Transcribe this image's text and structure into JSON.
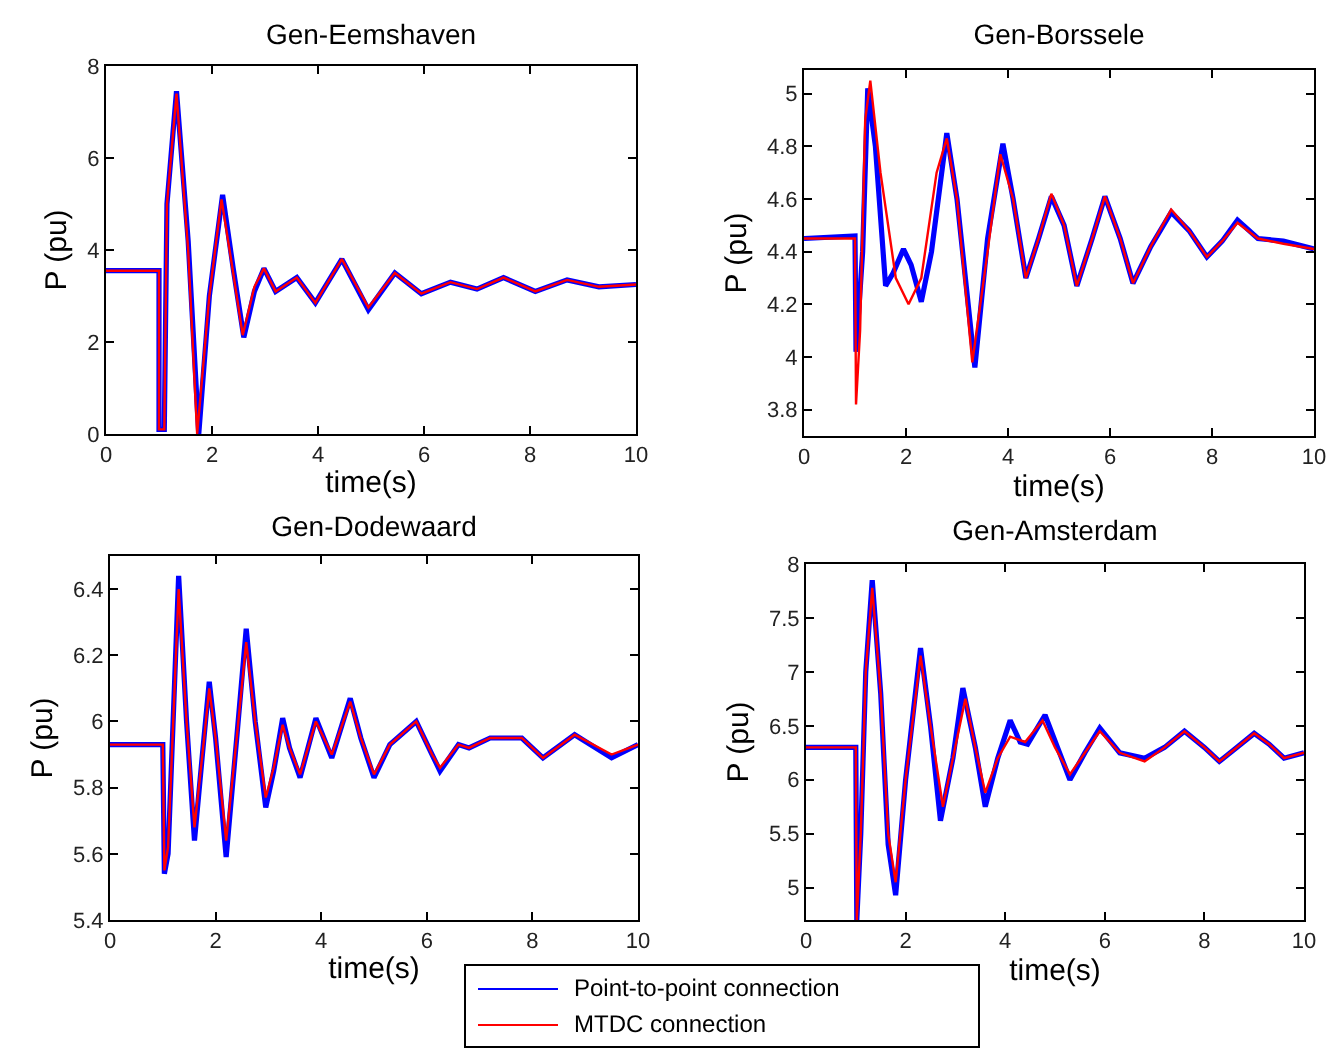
{
  "chart_data": [
    {
      "type": "line",
      "title": "Gen-Eemshaven",
      "xlabel": "time(s)",
      "ylabel": "P (pu)",
      "xlim": [
        0,
        10
      ],
      "xticks": [
        0,
        2,
        4,
        6,
        8,
        10
      ],
      "ylim": [
        0,
        8
      ],
      "yticks": [
        0,
        2,
        4,
        6,
        8
      ],
      "grid": false,
      "legend": false,
      "marker": "none",
      "line_style": "solid",
      "series": [
        {
          "color": "#0000ff",
          "x": [
            0,
            1,
            1.0,
            1.1,
            1.15,
            1.33,
            1.55,
            1.75,
            1.95,
            2.2,
            2.4,
            2.6,
            2.8,
            2.98,
            3.2,
            3.6,
            3.95,
            4.45,
            4.95,
            5.45,
            5.95,
            6.5,
            7.0,
            7.5,
            8.1,
            8.7,
            9.3,
            10
          ],
          "values": [
            3.55,
            3.55,
            0.1,
            0.1,
            5,
            7.45,
            4.2,
            0,
            3,
            5.2,
            3.6,
            2.1,
            3.1,
            3.6,
            3.1,
            3.4,
            2.85,
            3.8,
            2.7,
            3.5,
            3.05,
            3.3,
            3.15,
            3.4,
            3.1,
            3.35,
            3.2,
            3.25
          ]
        },
        {
          "color": "#ff0000",
          "x": [
            0,
            1,
            1.0,
            1.1,
            1.15,
            1.33,
            1.55,
            1.72,
            1.95,
            2.18,
            2.4,
            2.58,
            2.8,
            2.98,
            3.2,
            3.6,
            3.95,
            4.45,
            4.95,
            5.45,
            5.95,
            6.5,
            7.0,
            7.5,
            8.1,
            8.7,
            9.3,
            10
          ],
          "values": [
            3.55,
            3.55,
            0.1,
            0.1,
            5,
            7.4,
            4,
            0,
            3,
            5.1,
            3.5,
            2.15,
            3.2,
            3.6,
            3.1,
            3.4,
            2.85,
            3.8,
            2.75,
            3.5,
            3.05,
            3.3,
            3.15,
            3.4,
            3.1,
            3.35,
            3.2,
            3.25
          ]
        }
      ]
    },
    {
      "type": "line",
      "title": "Gen-Borssele",
      "xlabel": "time(s)",
      "ylabel": "P (pu)",
      "xlim": [
        0,
        10
      ],
      "xticks": [
        0,
        2,
        4,
        6,
        8,
        10
      ],
      "ylim": [
        3.7,
        5.09
      ],
      "yticks": [
        3.8,
        4,
        4.2,
        4.4,
        4.6,
        4.8,
        5
      ],
      "grid": false,
      "legend": false,
      "marker": "none",
      "line_style": "solid",
      "series": [
        {
          "color": "#0000ff",
          "x": [
            0,
            1.0,
            1.02,
            1.15,
            1.25,
            1.4,
            1.6,
            1.75,
            1.95,
            2.1,
            2.3,
            2.5,
            2.8,
            3.0,
            3.35,
            3.6,
            3.9,
            4.1,
            4.35,
            4.6,
            4.85,
            5.1,
            5.35,
            5.65,
            5.9,
            6.2,
            6.45,
            6.8,
            7.2,
            7.55,
            7.9,
            8.2,
            8.5,
            8.9,
            9.4,
            10
          ],
          "values": [
            4.45,
            4.46,
            4.02,
            4.4,
            5.02,
            4.8,
            4.27,
            4.32,
            4.41,
            4.35,
            4.21,
            4.4,
            4.85,
            4.6,
            3.96,
            4.45,
            4.81,
            4.6,
            4.3,
            4.45,
            4.61,
            4.5,
            4.27,
            4.45,
            4.61,
            4.45,
            4.28,
            4.42,
            4.55,
            4.48,
            4.38,
            4.44,
            4.52,
            4.45,
            4.44,
            4.41
          ]
        },
        {
          "color": "#ff0000",
          "x": [
            0,
            1.0,
            1.02,
            1.1,
            1.2,
            1.3,
            1.5,
            1.8,
            2.05,
            2.3,
            2.6,
            2.8,
            3.0,
            3.3,
            3.6,
            3.85,
            4.1,
            4.35,
            4.6,
            4.85,
            5.1,
            5.35,
            5.65,
            5.9,
            6.2,
            6.45,
            6.8,
            7.2,
            7.55,
            7.9,
            8.2,
            8.5,
            8.9,
            9.4,
            10
          ],
          "values": [
            4.45,
            4.45,
            3.82,
            4.1,
            4.9,
            5.05,
            4.7,
            4.3,
            4.2,
            4.3,
            4.7,
            4.83,
            4.6,
            3.98,
            4.4,
            4.77,
            4.6,
            4.3,
            4.45,
            4.62,
            4.5,
            4.27,
            4.45,
            4.61,
            4.45,
            4.28,
            4.42,
            4.56,
            4.48,
            4.38,
            4.44,
            4.51,
            4.45,
            4.43,
            4.41
          ]
        }
      ]
    },
    {
      "type": "line",
      "title": "Gen-Dodewaard",
      "xlabel": "time(s)",
      "ylabel": "P (pu)",
      "xlim": [
        0,
        10
      ],
      "xticks": [
        0,
        2,
        4,
        6,
        8,
        10
      ],
      "ylim": [
        5.4,
        6.5
      ],
      "yticks": [
        5.4,
        5.6,
        5.8,
        6,
        6.2,
        6.4
      ],
      "grid": false,
      "legend": "bottom",
      "marker": "none",
      "line_style": "solid",
      "series": [
        {
          "name": "Point-to-point connection",
          "color": "#0000ff",
          "x": [
            0,
            1.0,
            1.03,
            1.1,
            1.3,
            1.45,
            1.6,
            1.75,
            1.88,
            2.0,
            2.2,
            2.4,
            2.58,
            2.75,
            2.95,
            3.1,
            3.27,
            3.4,
            3.6,
            3.9,
            4.2,
            4.55,
            4.75,
            5.0,
            5.3,
            5.8,
            6.1,
            6.25,
            6.6,
            6.8,
            7.2,
            7.8,
            8.2,
            8.8,
            9.5,
            10
          ],
          "values": [
            5.93,
            5.93,
            5.54,
            5.6,
            6.44,
            6.0,
            5.64,
            5.9,
            6.12,
            5.95,
            5.59,
            5.95,
            6.28,
            6.0,
            5.74,
            5.85,
            6.01,
            5.92,
            5.83,
            6.01,
            5.89,
            6.07,
            5.95,
            5.83,
            5.93,
            6.0,
            5.9,
            5.85,
            5.93,
            5.92,
            5.95,
            5.95,
            5.89,
            5.96,
            5.89,
            5.93
          ]
        },
        {
          "name": "MTDC connection",
          "color": "#ff0000",
          "x": [
            0,
            1.0,
            1.03,
            1.1,
            1.3,
            1.45,
            1.6,
            1.75,
            1.88,
            2.0,
            2.2,
            2.4,
            2.58,
            2.75,
            2.95,
            3.1,
            3.27,
            3.4,
            3.6,
            3.9,
            4.2,
            4.55,
            4.75,
            5.0,
            5.3,
            5.8,
            6.1,
            6.25,
            6.6,
            6.8,
            7.2,
            7.8,
            8.2,
            8.8,
            9.5,
            10
          ],
          "values": [
            5.93,
            5.93,
            5.55,
            5.62,
            6.4,
            6.0,
            5.68,
            5.9,
            6.1,
            5.95,
            5.64,
            5.95,
            6.24,
            6.0,
            5.77,
            5.86,
            5.99,
            5.92,
            5.84,
            6.0,
            5.9,
            6.06,
            5.95,
            5.84,
            5.93,
            6.0,
            5.9,
            5.86,
            5.93,
            5.92,
            5.95,
            5.95,
            5.89,
            5.96,
            5.9,
            5.93
          ]
        }
      ]
    },
    {
      "type": "line",
      "title": "Gen-Amsterdam",
      "xlabel": "time(s)",
      "ylabel": "P (pu)",
      "xlim": [
        0,
        10
      ],
      "xticks": [
        0,
        2,
        4,
        6,
        8,
        10
      ],
      "ylim": [
        4.7,
        8
      ],
      "yticks": [
        5,
        5.5,
        6,
        6.5,
        7,
        7.5,
        8
      ],
      "grid": false,
      "legend": false,
      "marker": "none",
      "line_style": "solid",
      "series": [
        {
          "color": "#0000ff",
          "x": [
            0,
            1.0,
            1.02,
            1.1,
            1.2,
            1.33,
            1.5,
            1.65,
            1.8,
            2.0,
            2.3,
            2.5,
            2.7,
            2.95,
            3.15,
            3.4,
            3.6,
            3.85,
            4.1,
            4.3,
            4.45,
            4.8,
            5.05,
            5.3,
            5.6,
            5.9,
            6.3,
            6.8,
            7.2,
            7.6,
            8.0,
            8.3,
            8.6,
            9.0,
            9.3,
            9.6,
            10
          ],
          "values": [
            6.3,
            6.3,
            4.7,
            5.5,
            7.0,
            7.85,
            6.8,
            5.4,
            4.93,
            6.0,
            7.22,
            6.5,
            5.62,
            6.2,
            6.85,
            6.3,
            5.75,
            6.2,
            6.55,
            6.35,
            6.33,
            6.6,
            6.3,
            6.0,
            6.25,
            6.48,
            6.25,
            6.2,
            6.3,
            6.45,
            6.3,
            6.17,
            6.28,
            6.43,
            6.33,
            6.2,
            6.25
          ]
        },
        {
          "color": "#ff0000",
          "x": [
            0,
            1.0,
            1.02,
            1.1,
            1.2,
            1.33,
            1.5,
            1.65,
            1.8,
            2.0,
            2.3,
            2.5,
            2.75,
            2.95,
            3.2,
            3.4,
            3.6,
            3.85,
            4.1,
            4.4,
            4.75,
            5.0,
            5.3,
            5.6,
            5.9,
            6.3,
            6.8,
            7.2,
            7.6,
            8.0,
            8.3,
            8.6,
            9.0,
            9.3,
            9.6,
            10
          ],
          "values": [
            6.3,
            6.3,
            4.7,
            5.5,
            7.0,
            7.78,
            6.8,
            5.5,
            5.05,
            6.0,
            7.15,
            6.5,
            5.75,
            6.2,
            6.75,
            6.3,
            5.88,
            6.2,
            6.4,
            6.35,
            6.55,
            6.3,
            6.05,
            6.25,
            6.45,
            6.25,
            6.17,
            6.3,
            6.45,
            6.3,
            6.17,
            6.28,
            6.43,
            6.33,
            6.2,
            6.25
          ]
        }
      ]
    }
  ]
}
